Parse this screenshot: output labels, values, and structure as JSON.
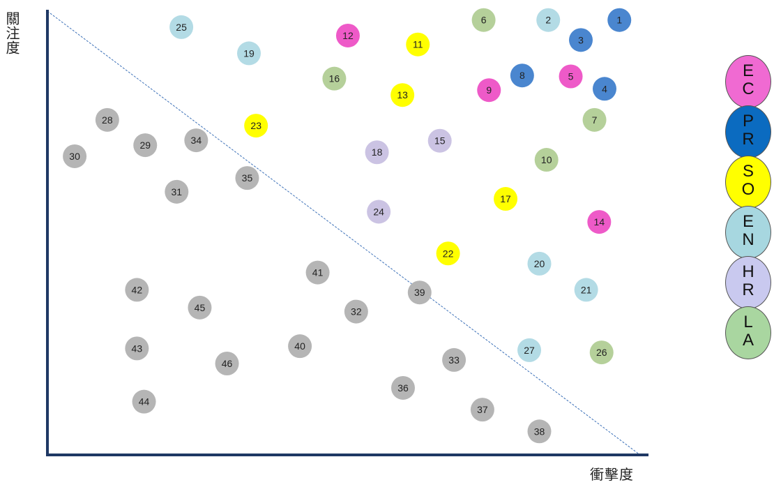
{
  "chart_data": {
    "type": "scatter",
    "title": "",
    "xlabel": "衝擊度",
    "ylabel": "關注度",
    "xlim": [
      0,
      100
    ],
    "ylim": [
      0,
      100
    ],
    "grid": false,
    "diagonal_line": {
      "from": [
        0,
        100
      ],
      "to": [
        100,
        0
      ],
      "style": "dashed",
      "color": "#3a6fb7"
    },
    "legend_position": "right",
    "categories": [
      {
        "key": "EC",
        "letters": [
          "E",
          "C"
        ],
        "color": "#f06ad2"
      },
      {
        "key": "PR",
        "letters": [
          "P",
          "R"
        ],
        "color": "#0b6bc0"
      },
      {
        "key": "SO",
        "letters": [
          "S",
          "O"
        ],
        "color": "#ffff00"
      },
      {
        "key": "EN",
        "letters": [
          "E",
          "N"
        ],
        "color": "#a7d7e0"
      },
      {
        "key": "HR",
        "letters": [
          "H",
          "R"
        ],
        "color": "#c9c9ef"
      },
      {
        "key": "LA",
        "letters": [
          "L",
          "A"
        ],
        "color": "#a9d6a0"
      }
    ],
    "point_colors": {
      "EC": "#ee5ac8",
      "PR": "#4a86cf",
      "SO": "#ffff00",
      "EN": "#b3dbe5",
      "HR": "#cbc3e3",
      "LA": "#b5d09a",
      "other": "#b5b5b5"
    },
    "points": [
      {
        "id": 1,
        "x": 96.5,
        "y": 98.0,
        "cat": "PR"
      },
      {
        "id": 2,
        "x": 84.5,
        "y": 98.0,
        "cat": "EN"
      },
      {
        "id": 3,
        "x": 90.0,
        "y": 93.5,
        "cat": "PR"
      },
      {
        "id": 4,
        "x": 94.0,
        "y": 82.5,
        "cat": "PR"
      },
      {
        "id": 5,
        "x": 88.3,
        "y": 85.3,
        "cat": "EC"
      },
      {
        "id": 6,
        "x": 73.6,
        "y": 98.0,
        "cat": "LA"
      },
      {
        "id": 7,
        "x": 92.3,
        "y": 75.5,
        "cat": "LA"
      },
      {
        "id": 8,
        "x": 80.1,
        "y": 85.5,
        "cat": "PR"
      },
      {
        "id": 9,
        "x": 74.5,
        "y": 82.2,
        "cat": "EC"
      },
      {
        "id": 10,
        "x": 84.2,
        "y": 66.5,
        "cat": "LA"
      },
      {
        "id": 11,
        "x": 62.5,
        "y": 92.5,
        "cat": "SO"
      },
      {
        "id": 12,
        "x": 50.7,
        "y": 94.5,
        "cat": "EC"
      },
      {
        "id": 13,
        "x": 59.9,
        "y": 81.1,
        "cat": "SO"
      },
      {
        "id": 14,
        "x": 93.1,
        "y": 52.5,
        "cat": "EC"
      },
      {
        "id": 15,
        "x": 66.2,
        "y": 70.8,
        "cat": "HR"
      },
      {
        "id": 16,
        "x": 48.4,
        "y": 84.8,
        "cat": "LA"
      },
      {
        "id": 17,
        "x": 77.3,
        "y": 57.7,
        "cat": "SO"
      },
      {
        "id": 18,
        "x": 55.6,
        "y": 68.2,
        "cat": "HR"
      },
      {
        "id": 19,
        "x": 34.0,
        "y": 90.5,
        "cat": "EN"
      },
      {
        "id": 20,
        "x": 83.0,
        "y": 43.1,
        "cat": "EN"
      },
      {
        "id": 21,
        "x": 90.9,
        "y": 37.2,
        "cat": "EN"
      },
      {
        "id": 22,
        "x": 67.6,
        "y": 45.4,
        "cat": "SO"
      },
      {
        "id": 23,
        "x": 35.2,
        "y": 74.2,
        "cat": "SO"
      },
      {
        "id": 24,
        "x": 55.9,
        "y": 54.8,
        "cat": "HR"
      },
      {
        "id": 25,
        "x": 22.6,
        "y": 96.4,
        "cat": "EN"
      },
      {
        "id": 26,
        "x": 93.5,
        "y": 23.1,
        "cat": "LA"
      },
      {
        "id": 27,
        "x": 81.3,
        "y": 23.6,
        "cat": "EN"
      },
      {
        "id": 28,
        "x": 10.1,
        "y": 75.5,
        "cat": "other"
      },
      {
        "id": 29,
        "x": 16.5,
        "y": 69.8,
        "cat": "other"
      },
      {
        "id": 30,
        "x": 4.6,
        "y": 67.3,
        "cat": "other"
      },
      {
        "id": 31,
        "x": 21.8,
        "y": 59.3,
        "cat": "other"
      },
      {
        "id": 32,
        "x": 52.1,
        "y": 32.3,
        "cat": "other"
      },
      {
        "id": 33,
        "x": 68.6,
        "y": 21.4,
        "cat": "other"
      },
      {
        "id": 34,
        "x": 25.1,
        "y": 70.9,
        "cat": "other"
      },
      {
        "id": 35,
        "x": 33.7,
        "y": 62.4,
        "cat": "other"
      },
      {
        "id": 36,
        "x": 60.0,
        "y": 15.1,
        "cat": "other"
      },
      {
        "id": 37,
        "x": 73.4,
        "y": 10.2,
        "cat": "other"
      },
      {
        "id": 38,
        "x": 83.0,
        "y": 5.3,
        "cat": "other"
      },
      {
        "id": 39,
        "x": 62.8,
        "y": 36.6,
        "cat": "other"
      },
      {
        "id": 40,
        "x": 42.6,
        "y": 24.5,
        "cat": "other"
      },
      {
        "id": 41,
        "x": 45.6,
        "y": 41.1,
        "cat": "other"
      },
      {
        "id": 42,
        "x": 15.1,
        "y": 37.2,
        "cat": "other"
      },
      {
        "id": 43,
        "x": 15.1,
        "y": 24.0,
        "cat": "other"
      },
      {
        "id": 44,
        "x": 16.3,
        "y": 12.0,
        "cat": "other"
      },
      {
        "id": 45,
        "x": 25.7,
        "y": 33.2,
        "cat": "other"
      },
      {
        "id": 46,
        "x": 30.3,
        "y": 20.6,
        "cat": "other"
      }
    ]
  }
}
